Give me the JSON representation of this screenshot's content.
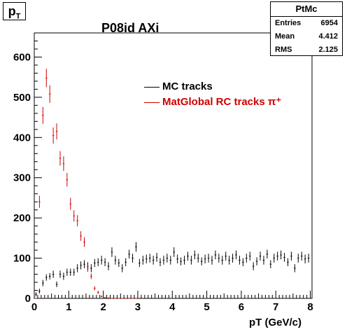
{
  "corner_label": {
    "base": "p",
    "sub": "T"
  },
  "title": "P08id AXi",
  "stats": {
    "name": "PtMc",
    "rows": [
      {
        "label": "Entries",
        "value": "6954"
      },
      {
        "label": "Mean",
        "value": "4.412"
      },
      {
        "label": "RMS",
        "value": "2.125"
      }
    ]
  },
  "chart_data": {
    "type": "scatter",
    "xlabel": "pT (GeV/c)",
    "ylabel": "",
    "xlim": [
      0,
      8.05
    ],
    "ylim": [
      0,
      660
    ],
    "xticks": [
      0,
      1,
      2,
      3,
      4,
      5,
      6,
      7,
      8
    ],
    "yticks": [
      0,
      100,
      200,
      300,
      400,
      500,
      600
    ],
    "legend": {
      "placement": "upper-right"
    },
    "series": [
      {
        "name": "MC tracks",
        "color": "#000000",
        "x": [
          0.05,
          0.15,
          0.25,
          0.35,
          0.45,
          0.55,
          0.65,
          0.75,
          0.85,
          0.95,
          1.05,
          1.15,
          1.25,
          1.35,
          1.45,
          1.55,
          1.65,
          1.75,
          1.85,
          1.95,
          2.05,
          2.15,
          2.25,
          2.35,
          2.45,
          2.55,
          2.65,
          2.75,
          2.85,
          2.95,
          3.05,
          3.15,
          3.25,
          3.35,
          3.45,
          3.55,
          3.65,
          3.75,
          3.85,
          3.95,
          4.05,
          4.15,
          4.25,
          4.35,
          4.45,
          4.55,
          4.65,
          4.75,
          4.85,
          4.95,
          5.05,
          5.15,
          5.25,
          5.35,
          5.45,
          5.55,
          5.65,
          5.75,
          5.85,
          5.95,
          6.05,
          6.15,
          6.25,
          6.35,
          6.45,
          6.55,
          6.65,
          6.75,
          6.85,
          6.95,
          7.05,
          7.15,
          7.25,
          7.35,
          7.45,
          7.55,
          7.65,
          7.75,
          7.85,
          7.95
        ],
        "y": [
          10,
          18,
          38,
          52,
          55,
          60,
          35,
          60,
          55,
          65,
          65,
          65,
          75,
          82,
          85,
          80,
          75,
          88,
          90,
          95,
          90,
          80,
          115,
          95,
          88,
          75,
          90,
          110,
          100,
          128,
          88,
          95,
          98,
          100,
          95,
          102,
          90,
          95,
          100,
          95,
          115,
          98,
          92,
          95,
          105,
          95,
          108,
          100,
          92,
          98,
          100,
          95,
          108,
          100,
          95,
          105,
          95,
          100,
          108,
          95,
          90,
          100,
          105,
          80,
          92,
          105,
          95,
          110,
          85,
          100,
          105,
          108,
          102,
          90,
          105,
          75,
          100,
          105,
          98,
          100
        ],
        "yerr": [
          5,
          6,
          8,
          8,
          8,
          9,
          7,
          9,
          9,
          9,
          9,
          9,
          10,
          10,
          10,
          10,
          10,
          10,
          10,
          11,
          10,
          10,
          12,
          11,
          10,
          10,
          10,
          11,
          11,
          12,
          10,
          11,
          11,
          11,
          11,
          11,
          10,
          11,
          11,
          11,
          12,
          11,
          10,
          11,
          11,
          11,
          11,
          11,
          10,
          11,
          11,
          11,
          11,
          11,
          11,
          11,
          11,
          11,
          11,
          11,
          10,
          11,
          11,
          10,
          10,
          11,
          11,
          11,
          10,
          11,
          11,
          11,
          11,
          10,
          11,
          10,
          11,
          11,
          11,
          11
        ]
      },
      {
        "name": "MatGlobal RC tracks π⁺",
        "color": "#d00000",
        "x": [
          0.05,
          0.15,
          0.25,
          0.35,
          0.45,
          0.55,
          0.65,
          0.75,
          0.85,
          0.95,
          1.05,
          1.15,
          1.25,
          1.35,
          1.45,
          1.55,
          1.65,
          1.75,
          1.85,
          1.95,
          2.05,
          2.15,
          2.25,
          2.35,
          2.45,
          2.55,
          2.65,
          2.75,
          2.85,
          2.95
        ],
        "y": [
          0,
          240,
          455,
          548,
          508,
          405,
          415,
          348,
          335,
          295,
          235,
          205,
          193,
          155,
          140,
          75,
          55,
          25,
          15,
          5,
          2,
          1,
          0,
          0,
          0,
          0,
          0,
          0,
          0,
          0
        ],
        "yerr": [
          0,
          15,
          21,
          23,
          22,
          20,
          20,
          18,
          18,
          17,
          15,
          14,
          14,
          12,
          12,
          9,
          7,
          5,
          4,
          2,
          1,
          1,
          0,
          0,
          0,
          0,
          0,
          0,
          0,
          0
        ]
      }
    ]
  }
}
